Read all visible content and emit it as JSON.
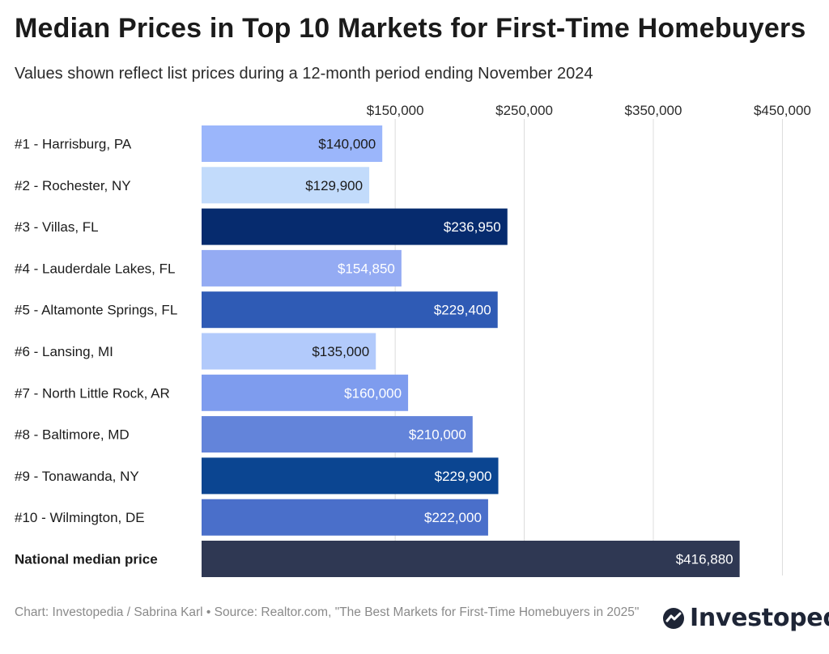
{
  "title": "Median Prices in Top 10 Markets for First-Time Homebuyers",
  "subtitle": "Values shown reflect list prices during a 12-month period ending November 2024",
  "footer": {
    "credit": "Chart: Investopedia / Sabrina Karl • Source: Realtor.com, \"The Best Markets for First-Time Homebuyers in 2025\""
  },
  "logo": {
    "text": "Investopedia",
    "icon": "investopedia-logo-icon"
  },
  "chart_data": {
    "type": "bar",
    "orientation": "horizontal",
    "title": "Median Prices in Top 10 Markets for First-Time Homebuyers",
    "xlabel": "",
    "ylabel": "",
    "xlim": [
      0,
      450000
    ],
    "gridlines": [
      150000,
      250000,
      350000,
      450000
    ],
    "tick_labels": [
      "$150,000",
      "$250,000",
      "$350,000",
      "$450,000"
    ],
    "axis_position": "top",
    "categories": [
      "#1 - Harrisburg, PA",
      "#2 - Rochester, NY",
      "#3 - Villas, FL",
      "#4 - Lauderdale Lakes, FL",
      "#5 - Altamonte Springs, FL",
      "#6 - Lansing, MI",
      "#7 - North Little Rock, AR",
      "#8 - Baltimore, MD",
      "#9 - Tonawanda, NY",
      "#10 - Wilmington, DE",
      "National median price"
    ],
    "values": [
      140000,
      129900,
      236950,
      154850,
      229400,
      135000,
      160000,
      210000,
      229900,
      222000,
      416880
    ],
    "value_labels": [
      "$140,000",
      "$129,900",
      "$236,950",
      "$154,850",
      "$229,400",
      "$135,000",
      "$160,000",
      "$210,000",
      "$229,900",
      "$222,000",
      "$416,880"
    ],
    "colors": [
      "#9bb6fb",
      "#c2dbfb",
      "#062b6e",
      "#94abf3",
      "#2f5bb5",
      "#b2cafb",
      "#7e9cee",
      "#6384da",
      "#0b4591",
      "#4a6fca",
      "#2f3853"
    ],
    "label_colors": [
      "#1b1b1b",
      "#1b1b1b",
      "#ffffff",
      "#ffffff",
      "#ffffff",
      "#1b1b1b",
      "#ffffff",
      "#ffffff",
      "#ffffff",
      "#ffffff",
      "#ffffff"
    ],
    "bold_categories": [
      false,
      false,
      false,
      false,
      false,
      false,
      false,
      false,
      false,
      false,
      true
    ]
  }
}
